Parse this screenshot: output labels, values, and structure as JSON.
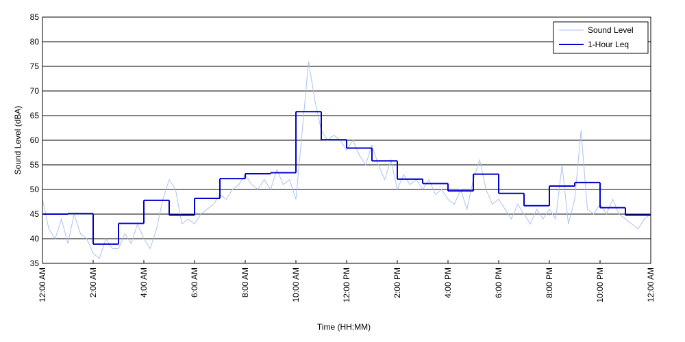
{
  "chart_data": {
    "type": "line",
    "xlabel": "Time (HH:MM)",
    "ylabel": "Sound Level (dBA)",
    "xlim": [
      0,
      24
    ],
    "ylim": [
      35,
      85
    ],
    "yticks": [
      35,
      40,
      45,
      50,
      55,
      60,
      65,
      70,
      75,
      80,
      85
    ],
    "xticks": [
      {
        "value": 0,
        "label": "12:00 AM"
      },
      {
        "value": 2,
        "label": "2:00 AM"
      },
      {
        "value": 4,
        "label": "4:00 AM"
      },
      {
        "value": 6,
        "label": "6:00 AM"
      },
      {
        "value": 8,
        "label": "8:00 AM"
      },
      {
        "value": 10,
        "label": "10:00 AM"
      },
      {
        "value": 12,
        "label": "12:00 PM"
      },
      {
        "value": 14,
        "label": "2:00 PM"
      },
      {
        "value": 16,
        "label": "4:00 PM"
      },
      {
        "value": 18,
        "label": "6:00 PM"
      },
      {
        "value": 20,
        "label": "8:00 PM"
      },
      {
        "value": 22,
        "label": "10:00 PM"
      },
      {
        "value": 24,
        "label": "12:00 AM"
      }
    ],
    "grid": true,
    "legend": "upper right",
    "series": [
      {
        "name": "Sound Level",
        "color": "#a9c1f2",
        "step": false,
        "x": [
          0,
          0.25,
          0.5,
          0.75,
          1,
          1.25,
          1.5,
          1.75,
          2,
          2.25,
          2.5,
          2.75,
          3,
          3.25,
          3.5,
          3.75,
          4,
          4.25,
          4.5,
          4.75,
          5,
          5.25,
          5.5,
          5.75,
          6,
          6.25,
          6.5,
          6.75,
          7,
          7.25,
          7.5,
          7.75,
          8,
          8.25,
          8.5,
          8.75,
          9,
          9.25,
          9.5,
          9.75,
          10,
          10.25,
          10.5,
          10.75,
          11,
          11.25,
          11.5,
          11.75,
          12,
          12.25,
          12.5,
          12.75,
          13,
          13.25,
          13.5,
          13.75,
          14,
          14.25,
          14.5,
          14.75,
          15,
          15.25,
          15.5,
          15.75,
          16,
          16.25,
          16.5,
          16.75,
          17,
          17.25,
          17.5,
          17.75,
          18,
          18.25,
          18.5,
          18.75,
          19,
          19.25,
          19.5,
          19.75,
          20,
          20.25,
          20.5,
          20.75,
          21,
          21.25,
          21.5,
          21.75,
          22,
          22.25,
          22.5,
          22.75,
          23,
          23.25,
          23.5,
          23.75,
          24
        ],
        "values": [
          48,
          42,
          40,
          44,
          39,
          45,
          41,
          40,
          37,
          36,
          40,
          38,
          38,
          41,
          39,
          43,
          40,
          38,
          42,
          48,
          52,
          50,
          43,
          44,
          43,
          45,
          46,
          47,
          49,
          48,
          50,
          51,
          53,
          51,
          50,
          52,
          50,
          54,
          51,
          52,
          48,
          62,
          76,
          68,
          62,
          60,
          61,
          60,
          58,
          60,
          57,
          55,
          59,
          55,
          52,
          56,
          50,
          53,
          51,
          52,
          50,
          52,
          49,
          50,
          48,
          47,
          50,
          46,
          52,
          56,
          50,
          47,
          48,
          46,
          44,
          47,
          45,
          43,
          46,
          44,
          46,
          44,
          55,
          43,
          48,
          62,
          46,
          45,
          47,
          45,
          48,
          45,
          44,
          43,
          42,
          44,
          45
        ]
      },
      {
        "name": "1-Hour Leq",
        "color": "#0000cc",
        "step": true,
        "x": [
          0,
          1,
          2,
          3,
          4,
          5,
          6,
          7,
          8,
          9,
          10,
          11,
          12,
          13,
          14,
          15,
          16,
          17,
          18,
          19,
          20,
          21,
          22,
          23
        ],
        "values": [
          45,
          45.1,
          38.9,
          43.1,
          47.8,
          44.8,
          48.2,
          52.2,
          53.2,
          53.4,
          65.8,
          60.1,
          58.4,
          55.8,
          52.1,
          51.2,
          49.7,
          53.1,
          49.2,
          46.7,
          50.7,
          51.4,
          46.3,
          44.8
        ]
      }
    ]
  }
}
